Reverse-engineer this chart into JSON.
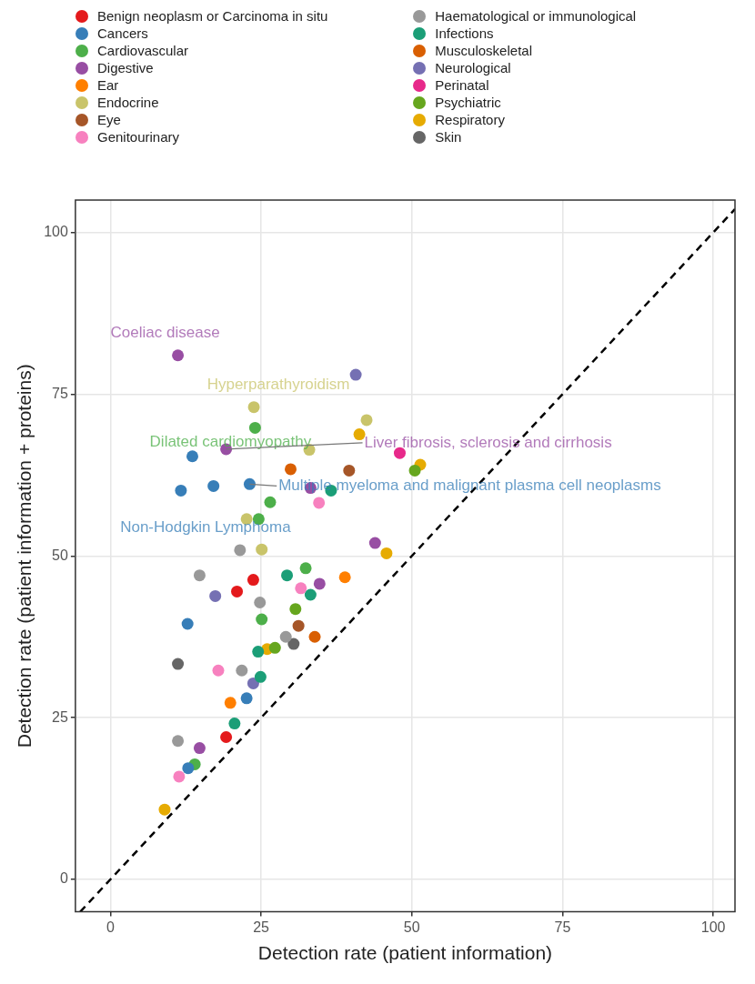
{
  "chart_data": {
    "type": "scatter",
    "xlabel": "Detection rate (patient information)",
    "ylabel": "Detection rate (patient information + proteins)",
    "xlim": [
      -5.8,
      103.6
    ],
    "ylim": [
      -5,
      105
    ],
    "xticks": [
      0,
      25,
      50,
      75,
      100
    ],
    "yticks": [
      0,
      25,
      50,
      75,
      100
    ],
    "grid": true,
    "legend": "top",
    "marker": "circle",
    "series": [
      {
        "name": "Benign neoplasm or Carcinoma in situ",
        "color": "#e41a1c",
        "x": [
          19.2,
          21.0,
          23.7
        ],
        "values": [
          22.0,
          44.5,
          46.3
        ]
      },
      {
        "name": "Cancers",
        "color": "#377eb8",
        "x": [
          13.6,
          11.7,
          17.1,
          23.1,
          12.8,
          12.9,
          22.6
        ],
        "values": [
          65.4,
          60.1,
          60.8,
          61.1,
          39.5,
          17.2,
          28.0
        ]
      },
      {
        "name": "Cardiovascular",
        "color": "#4daf4a",
        "x": [
          24.0,
          26.5,
          24.6,
          32.4,
          25.1,
          14.0
        ],
        "values": [
          69.8,
          58.3,
          55.7,
          48.1,
          40.2,
          17.8
        ]
      },
      {
        "name": "Digestive",
        "color": "#984ea3",
        "x": [
          11.2,
          19.2,
          33.2,
          43.9,
          34.7,
          14.8
        ],
        "values": [
          81.0,
          66.5,
          60.5,
          52.0,
          45.7,
          20.3
        ]
      },
      {
        "name": "Ear",
        "color": "#ff7f00",
        "x": [
          38.9,
          19.9
        ],
        "values": [
          46.7,
          27.3
        ]
      },
      {
        "name": "Endocrine",
        "color": "#c9c46a",
        "x": [
          23.8,
          42.5,
          33.0,
          22.6,
          25.1
        ],
        "values": [
          73.0,
          71.0,
          66.4,
          55.7,
          51.0
        ]
      },
      {
        "name": "Eye",
        "color": "#a65628",
        "x": [
          39.6,
          31.2
        ],
        "values": [
          63.2,
          39.2
        ]
      },
      {
        "name": "Genitourinary",
        "color": "#f781bf",
        "x": [
          34.6,
          31.6,
          17.9,
          11.4
        ],
        "values": [
          58.2,
          45.0,
          32.3,
          15.9
        ]
      },
      {
        "name": "Haematological or immunological",
        "color": "#999999",
        "x": [
          21.5,
          14.8,
          24.8,
          21.8,
          29.1,
          11.2
        ],
        "values": [
          50.9,
          47.0,
          42.8,
          32.3,
          37.5,
          21.4
        ]
      },
      {
        "name": "Infections",
        "color": "#1b9e77",
        "x": [
          29.3,
          33.2,
          24.5,
          24.9,
          20.6,
          36.6
        ],
        "values": [
          47.0,
          44.0,
          35.2,
          31.3,
          24.1,
          60.1
        ]
      },
      {
        "name": "Musculoskeletal",
        "color": "#d95f02",
        "x": [
          29.9,
          33.9
        ],
        "values": [
          63.4,
          37.5
        ]
      },
      {
        "name": "Neurological",
        "color": "#7570b3",
        "x": [
          40.7,
          17.4,
          23.7
        ],
        "values": [
          78.0,
          43.8,
          30.3
        ]
      },
      {
        "name": "Perinatal",
        "color": "#e7298a",
        "x": [
          48.0
        ],
        "values": [
          65.9
        ]
      },
      {
        "name": "Psychiatric",
        "color": "#66a61e",
        "x": [
          50.5,
          30.7,
          27.3
        ],
        "values": [
          63.2,
          41.8,
          35.8
        ]
      },
      {
        "name": "Respiratory",
        "color": "#e6ab02",
        "x": [
          41.3,
          51.4,
          45.8,
          26.0,
          9.0
        ],
        "values": [
          68.8,
          64.1,
          50.4,
          35.6,
          10.8
        ]
      },
      {
        "name": "Skin",
        "color": "#666666",
        "x": [
          11.2,
          30.4
        ],
        "values": [
          33.3,
          36.4
        ]
      },
      {
        "type": "line",
        "color": "#000000",
        "line_style": "dashed",
        "marker": "none",
        "x": [
          -5,
          103.6
        ],
        "values": [
          -5,
          103.6
        ]
      }
    ],
    "annotations": [
      {
        "text": "Coeliac disease",
        "x": 11.2,
        "y": 81.0
      },
      {
        "text": "Hyperparathyroidism",
        "x": 23.8,
        "y": 73.0
      },
      {
        "text": "Dilated cardiomyopathy",
        "x": 24.0,
        "y": 69.8
      },
      {
        "text": "Liver fibrosis, sclerosis and cirrhosis",
        "x": 19.2,
        "y": 66.5
      },
      {
        "text": "Multiple myeloma and malignant plasma cell neoplasms",
        "x": 23.1,
        "y": 61.1
      },
      {
        "text": "Non-Hodgkin Lymphoma",
        "x": 11.7,
        "y": 60.1
      }
    ]
  }
}
